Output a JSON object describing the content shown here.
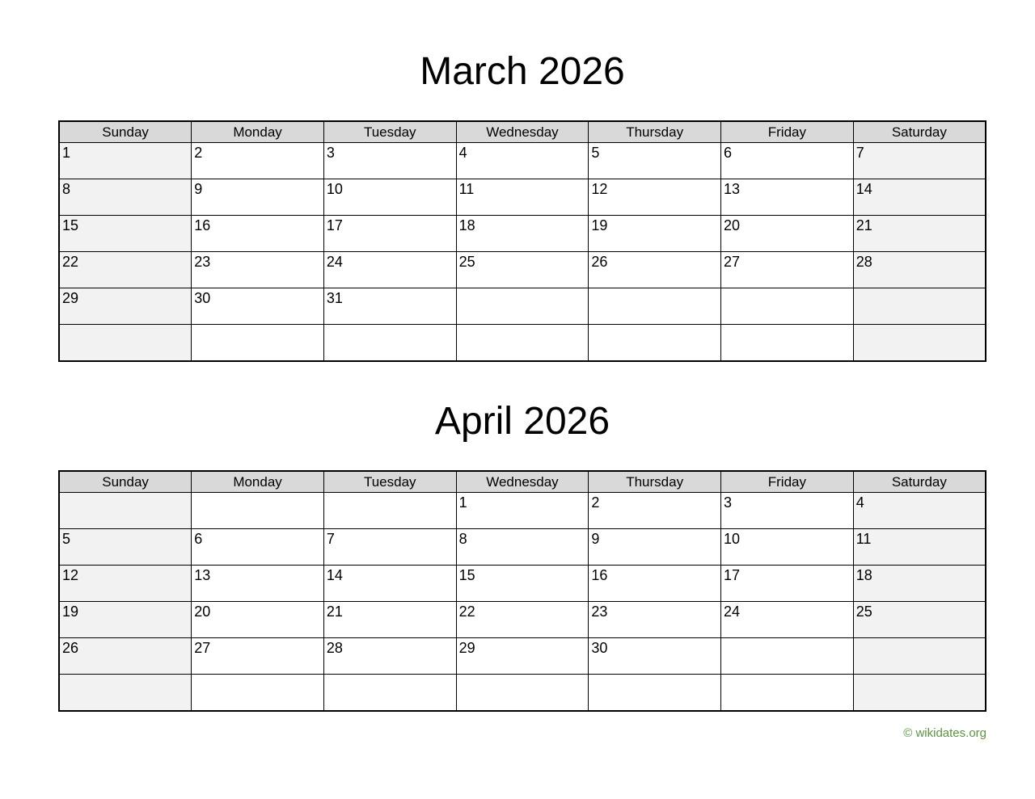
{
  "page": {
    "background": "#ffffff"
  },
  "colors": {
    "header_bg": "#d9d9d9",
    "weekend_bg": "#f2f2f2",
    "weekday_bg": "#ffffff",
    "border": "#000000",
    "title_text": "#000000",
    "footer_text": "#5d9145"
  },
  "months": [
    {
      "title": "March 2026",
      "weekdays": [
        "Sunday",
        "Monday",
        "Tuesday",
        "Wednesday",
        "Thursday",
        "Friday",
        "Saturday"
      ],
      "weeks": [
        [
          "1",
          "2",
          "3",
          "4",
          "5",
          "6",
          "7"
        ],
        [
          "8",
          "9",
          "10",
          "11",
          "12",
          "13",
          "14"
        ],
        [
          "15",
          "16",
          "17",
          "18",
          "19",
          "20",
          "21"
        ],
        [
          "22",
          "23",
          "24",
          "25",
          "26",
          "27",
          "28"
        ],
        [
          "29",
          "30",
          "31",
          "",
          "",
          "",
          ""
        ],
        [
          "",
          "",
          "",
          "",
          "",
          "",
          ""
        ]
      ]
    },
    {
      "title": "April 2026",
      "weekdays": [
        "Sunday",
        "Monday",
        "Tuesday",
        "Wednesday",
        "Thursday",
        "Friday",
        "Saturday"
      ],
      "weeks": [
        [
          "",
          "",
          "",
          "1",
          "2",
          "3",
          "4"
        ],
        [
          "5",
          "6",
          "7",
          "8",
          "9",
          "10",
          "11"
        ],
        [
          "12",
          "13",
          "14",
          "15",
          "16",
          "17",
          "18"
        ],
        [
          "19",
          "20",
          "21",
          "22",
          "23",
          "24",
          "25"
        ],
        [
          "26",
          "27",
          "28",
          "29",
          "30",
          "",
          ""
        ],
        [
          "",
          "",
          "",
          "",
          "",
          "",
          ""
        ]
      ]
    }
  ],
  "footer": {
    "copyright": "© wikidates.org"
  }
}
